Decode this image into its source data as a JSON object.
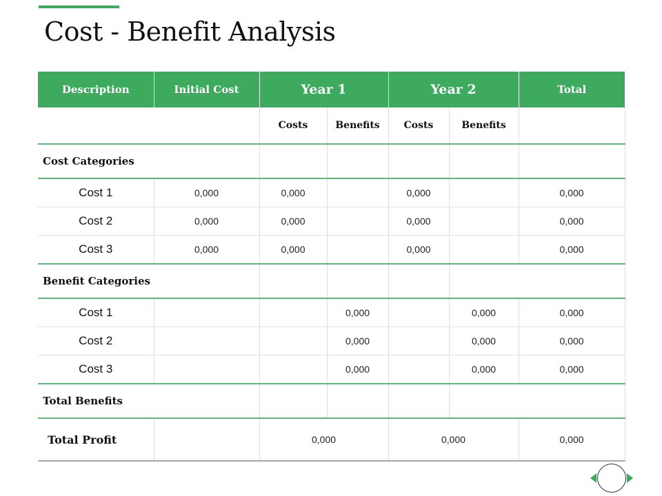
{
  "title": "Cost - Benefit Analysis",
  "header": {
    "description": "Description",
    "initial_cost": "Initial Cost",
    "year1": "Year 1",
    "year2": "Year 2",
    "total": "Total"
  },
  "subheader": [
    "Costs",
    "Benefits",
    "Costs",
    "Benefits"
  ],
  "cost_section": {
    "label": "Cost Categories",
    "rows": [
      {
        "name": "Cost 1",
        "initial": "0,000",
        "y1_costs": "0,000",
        "y1_benefits": "",
        "y2_costs": "0,000",
        "y2_benefits": "",
        "total": "0,000"
      },
      {
        "name": "Cost 2",
        "initial": "0,000",
        "y1_costs": "0,000",
        "y1_benefits": "",
        "y2_costs": "0,000",
        "y2_benefits": "",
        "total": "0,000"
      },
      {
        "name": "Cost 3",
        "initial": "0,000",
        "y1_costs": "0,000",
        "y1_benefits": "",
        "y2_costs": "0,000",
        "y2_benefits": "",
        "total": "0,000"
      }
    ]
  },
  "benefit_section": {
    "label": "Benefit Categories",
    "rows": [
      {
        "name": "Cost 1",
        "initial": "",
        "y1_costs": "",
        "y1_benefits": "0,000",
        "y2_costs": "",
        "y2_benefits": "0,000",
        "total": "0,000"
      },
      {
        "name": "Cost 2",
        "initial": "",
        "y1_costs": "",
        "y1_benefits": "0,000",
        "y2_costs": "",
        "y2_benefits": "0,000",
        "total": "0,000"
      },
      {
        "name": "Cost 3",
        "initial": "",
        "y1_costs": "",
        "y1_benefits": "0,000",
        "y2_costs": "",
        "y2_benefits": "0,000",
        "total": "0,000"
      }
    ]
  },
  "total_benefits": {
    "label": "Total Benefits"
  },
  "total_profit": {
    "label": "Total Profit",
    "year1": "0,000",
    "year2": "0,000",
    "total": "0,000"
  },
  "nav": {
    "prev_icon": "triangle-left-icon",
    "circle_icon": "circle-icon",
    "next_icon": "triangle-right-icon"
  },
  "colors": {
    "accent": "#3daa5e"
  }
}
